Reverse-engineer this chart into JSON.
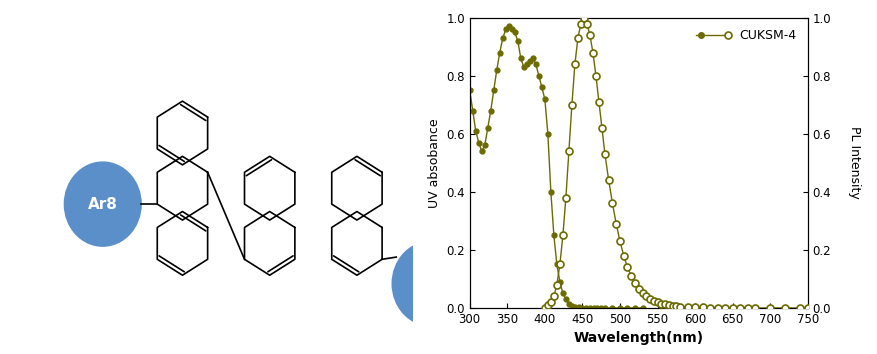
{
  "uv_wavelength": [
    300,
    304,
    308,
    312,
    316,
    320,
    324,
    328,
    332,
    336,
    340,
    344,
    348,
    352,
    356,
    360,
    364,
    368,
    372,
    376,
    380,
    384,
    388,
    392,
    396,
    400,
    404,
    408,
    412,
    416,
    420,
    424,
    428,
    432,
    436,
    440,
    445,
    450,
    455,
    460,
    465,
    470,
    475,
    480,
    490,
    500,
    510,
    520,
    530
  ],
  "uv_absorbance": [
    0.75,
    0.68,
    0.61,
    0.57,
    0.54,
    0.56,
    0.62,
    0.68,
    0.75,
    0.82,
    0.88,
    0.93,
    0.96,
    0.97,
    0.96,
    0.95,
    0.92,
    0.86,
    0.83,
    0.84,
    0.85,
    0.86,
    0.84,
    0.8,
    0.76,
    0.72,
    0.6,
    0.4,
    0.25,
    0.15,
    0.09,
    0.05,
    0.03,
    0.015,
    0.008,
    0.004,
    0.002,
    0.001,
    0.001,
    0.0,
    0.0,
    0.0,
    0.0,
    0.0,
    0.0,
    0.0,
    0.0,
    0.0,
    0.0
  ],
  "pl_wavelength": [
    400,
    404,
    408,
    412,
    416,
    420,
    424,
    428,
    432,
    436,
    440,
    444,
    448,
    452,
    456,
    460,
    464,
    468,
    472,
    476,
    480,
    485,
    490,
    495,
    500,
    505,
    510,
    515,
    520,
    525,
    530,
    535,
    540,
    545,
    550,
    555,
    560,
    565,
    570,
    575,
    580,
    590,
    600,
    610,
    620,
    630,
    640,
    650,
    660,
    670,
    680,
    700,
    720,
    740,
    750
  ],
  "pl_intensity": [
    0.0,
    0.01,
    0.02,
    0.04,
    0.08,
    0.15,
    0.25,
    0.38,
    0.54,
    0.7,
    0.84,
    0.93,
    0.98,
    1.0,
    0.98,
    0.94,
    0.88,
    0.8,
    0.71,
    0.62,
    0.53,
    0.44,
    0.36,
    0.29,
    0.23,
    0.18,
    0.14,
    0.11,
    0.085,
    0.066,
    0.051,
    0.04,
    0.031,
    0.024,
    0.019,
    0.015,
    0.012,
    0.009,
    0.007,
    0.006,
    0.005,
    0.003,
    0.002,
    0.002,
    0.001,
    0.001,
    0.001,
    0.0,
    0.0,
    0.0,
    0.0,
    0.0,
    0.0,
    0.0,
    0.0
  ],
  "color": "#6b6b00",
  "xlabel": "Wavelength(nm)",
  "ylabel_left": "UV absobance",
  "ylabel_right": "PL Intensity",
  "legend_label": "CUKSM-4",
  "xlim": [
    300,
    750
  ],
  "ylim": [
    0.0,
    1.0
  ],
  "xticks": [
    300,
    350,
    400,
    450,
    500,
    550,
    600,
    650,
    700,
    750
  ],
  "yticks": [
    0.0,
    0.2,
    0.4,
    0.6,
    0.8,
    1.0
  ],
  "background_color": "#ffffff",
  "ellipse_color": "#5b8fc9",
  "struct_lw": 1.2
}
